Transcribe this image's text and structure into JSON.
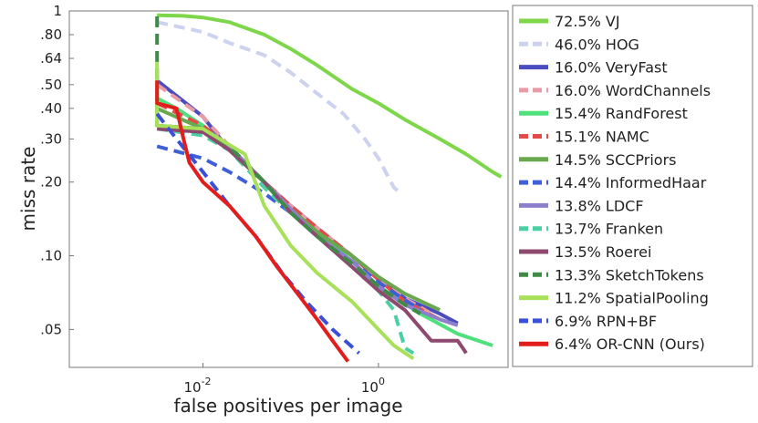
{
  "chart_data": {
    "type": "line",
    "xlabel": "false positives per image",
    "ylabel": "miss rate",
    "x_scale": "log",
    "y_scale": "log",
    "xlim": [
      0.0003,
      30
    ],
    "ylim": [
      0.035,
      1
    ],
    "x_ticks": [
      {
        "value": 0.01,
        "base": "10",
        "exp": "-2"
      },
      {
        "value": 1,
        "base": "10",
        "exp": "0"
      }
    ],
    "y_ticks": [
      {
        "value": 1,
        "label": "1"
      },
      {
        "value": 0.8,
        "label": ".80"
      },
      {
        "value": 0.64,
        "label": ".64"
      },
      {
        "value": 0.5,
        "label": ".50"
      },
      {
        "value": 0.4,
        "label": ".40"
      },
      {
        "value": 0.3,
        "label": ".30"
      },
      {
        "value": 0.2,
        "label": ".20"
      },
      {
        "value": 0.1,
        "label": ".10"
      },
      {
        "value": 0.05,
        "label": ".05"
      }
    ],
    "grid": false,
    "legend_position": "right",
    "series": [
      {
        "name": "72.5% VJ",
        "color": "#7ed64a",
        "dash": "solid",
        "points": [
          [
            0.003,
            0.96
          ],
          [
            0.006,
            0.955
          ],
          [
            0.01,
            0.94
          ],
          [
            0.02,
            0.9
          ],
          [
            0.05,
            0.8
          ],
          [
            0.1,
            0.7
          ],
          [
            0.2,
            0.6
          ],
          [
            0.5,
            0.48
          ],
          [
            1,
            0.42
          ],
          [
            2,
            0.36
          ],
          [
            5,
            0.3
          ],
          [
            10,
            0.26
          ],
          [
            20,
            0.22
          ],
          [
            25,
            0.21
          ]
        ]
      },
      {
        "name": "46.0% HOG",
        "color": "#cdd3ef",
        "dash": "dashed",
        "points": [
          [
            0.003,
            0.9
          ],
          [
            0.01,
            0.82
          ],
          [
            0.02,
            0.74
          ],
          [
            0.05,
            0.66
          ],
          [
            0.1,
            0.56
          ],
          [
            0.2,
            0.46
          ],
          [
            0.4,
            0.38
          ],
          [
            0.7,
            0.3
          ],
          [
            1,
            0.25
          ],
          [
            1.5,
            0.19
          ],
          [
            1.8,
            0.18
          ]
        ]
      },
      {
        "name": "16.0% VeryFast",
        "color": "#4b4dbf",
        "dash": "solid",
        "points": [
          [
            0.003,
            0.52
          ],
          [
            0.005,
            0.45
          ],
          [
            0.01,
            0.37
          ],
          [
            0.02,
            0.27
          ],
          [
            0.05,
            0.2
          ],
          [
            0.1,
            0.16
          ],
          [
            0.2,
            0.13
          ],
          [
            0.5,
            0.1
          ],
          [
            1,
            0.08
          ],
          [
            2,
            0.067
          ],
          [
            5,
            0.058
          ],
          [
            8,
            0.053
          ]
        ]
      },
      {
        "name": "16.0% WordChannels",
        "color": "#e89aa5",
        "dash": "dashed",
        "points": [
          [
            0.003,
            0.5
          ],
          [
            0.005,
            0.44
          ],
          [
            0.01,
            0.37
          ],
          [
            0.02,
            0.28
          ],
          [
            0.05,
            0.2
          ],
          [
            0.1,
            0.16
          ],
          [
            0.2,
            0.13
          ],
          [
            0.5,
            0.1
          ],
          [
            1,
            0.08
          ],
          [
            2,
            0.067
          ],
          [
            4,
            0.058
          ]
        ]
      },
      {
        "name": "15.4% RandForest",
        "color": "#4ee07a",
        "dash": "solid",
        "points": [
          [
            0.003,
            0.44
          ],
          [
            0.005,
            0.4
          ],
          [
            0.01,
            0.34
          ],
          [
            0.02,
            0.27
          ],
          [
            0.05,
            0.2
          ],
          [
            0.1,
            0.155
          ],
          [
            0.2,
            0.125
          ],
          [
            0.5,
            0.095
          ],
          [
            1,
            0.075
          ],
          [
            3,
            0.058
          ],
          [
            8,
            0.048
          ],
          [
            20,
            0.043
          ]
        ]
      },
      {
        "name": "15.1% NAMC",
        "color": "#e34b4b",
        "dash": "dashed",
        "points": [
          [
            0.003,
            0.42
          ],
          [
            0.01,
            0.34
          ],
          [
            0.02,
            0.28
          ],
          [
            0.05,
            0.2
          ],
          [
            0.1,
            0.16
          ],
          [
            0.2,
            0.13
          ],
          [
            0.5,
            0.1
          ],
          [
            1,
            0.08
          ],
          [
            2,
            0.065
          ],
          [
            5,
            0.055
          ]
        ]
      },
      {
        "name": "14.5% SCCPriors",
        "color": "#6aa84f",
        "dash": "solid",
        "points": [
          [
            0.003,
            0.4
          ],
          [
            0.01,
            0.33
          ],
          [
            0.02,
            0.27
          ],
          [
            0.05,
            0.2
          ],
          [
            0.1,
            0.155
          ],
          [
            0.2,
            0.125
          ],
          [
            0.5,
            0.1
          ],
          [
            1,
            0.082
          ],
          [
            2,
            0.07
          ],
          [
            5,
            0.06
          ]
        ]
      },
      {
        "name": "14.4% InformedHaar",
        "color": "#3f5fd4",
        "dash": "dashed",
        "points": [
          [
            0.003,
            0.28
          ],
          [
            0.01,
            0.25
          ],
          [
            0.02,
            0.22
          ],
          [
            0.05,
            0.18
          ],
          [
            0.1,
            0.15
          ],
          [
            0.2,
            0.12
          ],
          [
            0.5,
            0.095
          ],
          [
            1,
            0.078
          ],
          [
            2,
            0.066
          ],
          [
            3,
            0.06
          ]
        ]
      },
      {
        "name": "13.8% LDCF",
        "color": "#8d7fcc",
        "dash": "solid",
        "points": [
          [
            0.003,
            0.34
          ],
          [
            0.01,
            0.33
          ],
          [
            0.02,
            0.28
          ],
          [
            0.05,
            0.2
          ],
          [
            0.1,
            0.155
          ],
          [
            0.2,
            0.12
          ],
          [
            0.5,
            0.095
          ],
          [
            1,
            0.075
          ],
          [
            2,
            0.063
          ],
          [
            5,
            0.055
          ],
          [
            8,
            0.052
          ]
        ]
      },
      {
        "name": "13.7% Franken",
        "color": "#4ecfa3",
        "dash": "dashed",
        "points": [
          [
            0.003,
            0.33
          ],
          [
            0.01,
            0.31
          ],
          [
            0.02,
            0.27
          ],
          [
            0.05,
            0.19
          ],
          [
            0.1,
            0.15
          ],
          [
            0.2,
            0.12
          ],
          [
            0.5,
            0.09
          ],
          [
            1,
            0.072
          ],
          [
            1.5,
            0.06
          ],
          [
            2,
            0.042
          ],
          [
            2.5,
            0.04
          ]
        ]
      },
      {
        "name": "13.5% Roerei",
        "color": "#8e4a6e",
        "dash": "solid",
        "points": [
          [
            0.003,
            0.33
          ],
          [
            0.01,
            0.32
          ],
          [
            0.02,
            0.27
          ],
          [
            0.05,
            0.2
          ],
          [
            0.1,
            0.15
          ],
          [
            0.2,
            0.12
          ],
          [
            0.5,
            0.09
          ],
          [
            1,
            0.072
          ],
          [
            2,
            0.06
          ],
          [
            4,
            0.045
          ],
          [
            8,
            0.045
          ],
          [
            10,
            0.04
          ]
        ]
      },
      {
        "name": "13.3% SketchTokens",
        "color": "#3f8a47",
        "dash": "dashed",
        "points": [
          [
            0.003,
            0.95
          ],
          [
            0.003,
            0.34
          ],
          [
            0.01,
            0.33
          ],
          [
            0.02,
            0.28
          ],
          [
            0.05,
            0.2
          ],
          [
            0.1,
            0.15
          ],
          [
            0.2,
            0.12
          ],
          [
            0.5,
            0.093
          ],
          [
            1,
            0.075
          ],
          [
            2,
            0.063
          ],
          [
            3,
            0.058
          ]
        ]
      },
      {
        "name": "11.2% SpatialPooling",
        "color": "#a8e05a",
        "dash": "solid",
        "points": [
          [
            0.003,
            0.62
          ],
          [
            0.003,
            0.34
          ],
          [
            0.01,
            0.33
          ],
          [
            0.03,
            0.26
          ],
          [
            0.05,
            0.16
          ],
          [
            0.1,
            0.11
          ],
          [
            0.2,
            0.085
          ],
          [
            0.5,
            0.065
          ],
          [
            1,
            0.05
          ],
          [
            1.5,
            0.043
          ],
          [
            2.5,
            0.038
          ]
        ]
      },
      {
        "name": "6.9% RPN+BF",
        "color": "#3b4fd8",
        "dash": "dashed",
        "points": [
          [
            0.003,
            0.38
          ],
          [
            0.005,
            0.3
          ],
          [
            0.01,
            0.22
          ],
          [
            0.02,
            0.16
          ],
          [
            0.04,
            0.12
          ],
          [
            0.08,
            0.085
          ],
          [
            0.15,
            0.065
          ],
          [
            0.3,
            0.05
          ],
          [
            0.6,
            0.04
          ]
        ]
      },
      {
        "name": "6.4% OR-CNN (Ours)",
        "color": "#e31c1c",
        "dash": "solid",
        "points": [
          [
            0.003,
            0.52
          ],
          [
            0.003,
            0.42
          ],
          [
            0.005,
            0.4
          ],
          [
            0.006,
            0.3
          ],
          [
            0.007,
            0.24
          ],
          [
            0.01,
            0.2
          ],
          [
            0.02,
            0.16
          ],
          [
            0.04,
            0.12
          ],
          [
            0.07,
            0.09
          ],
          [
            0.12,
            0.07
          ],
          [
            0.2,
            0.055
          ],
          [
            0.3,
            0.045
          ],
          [
            0.45,
            0.037
          ]
        ]
      }
    ]
  }
}
